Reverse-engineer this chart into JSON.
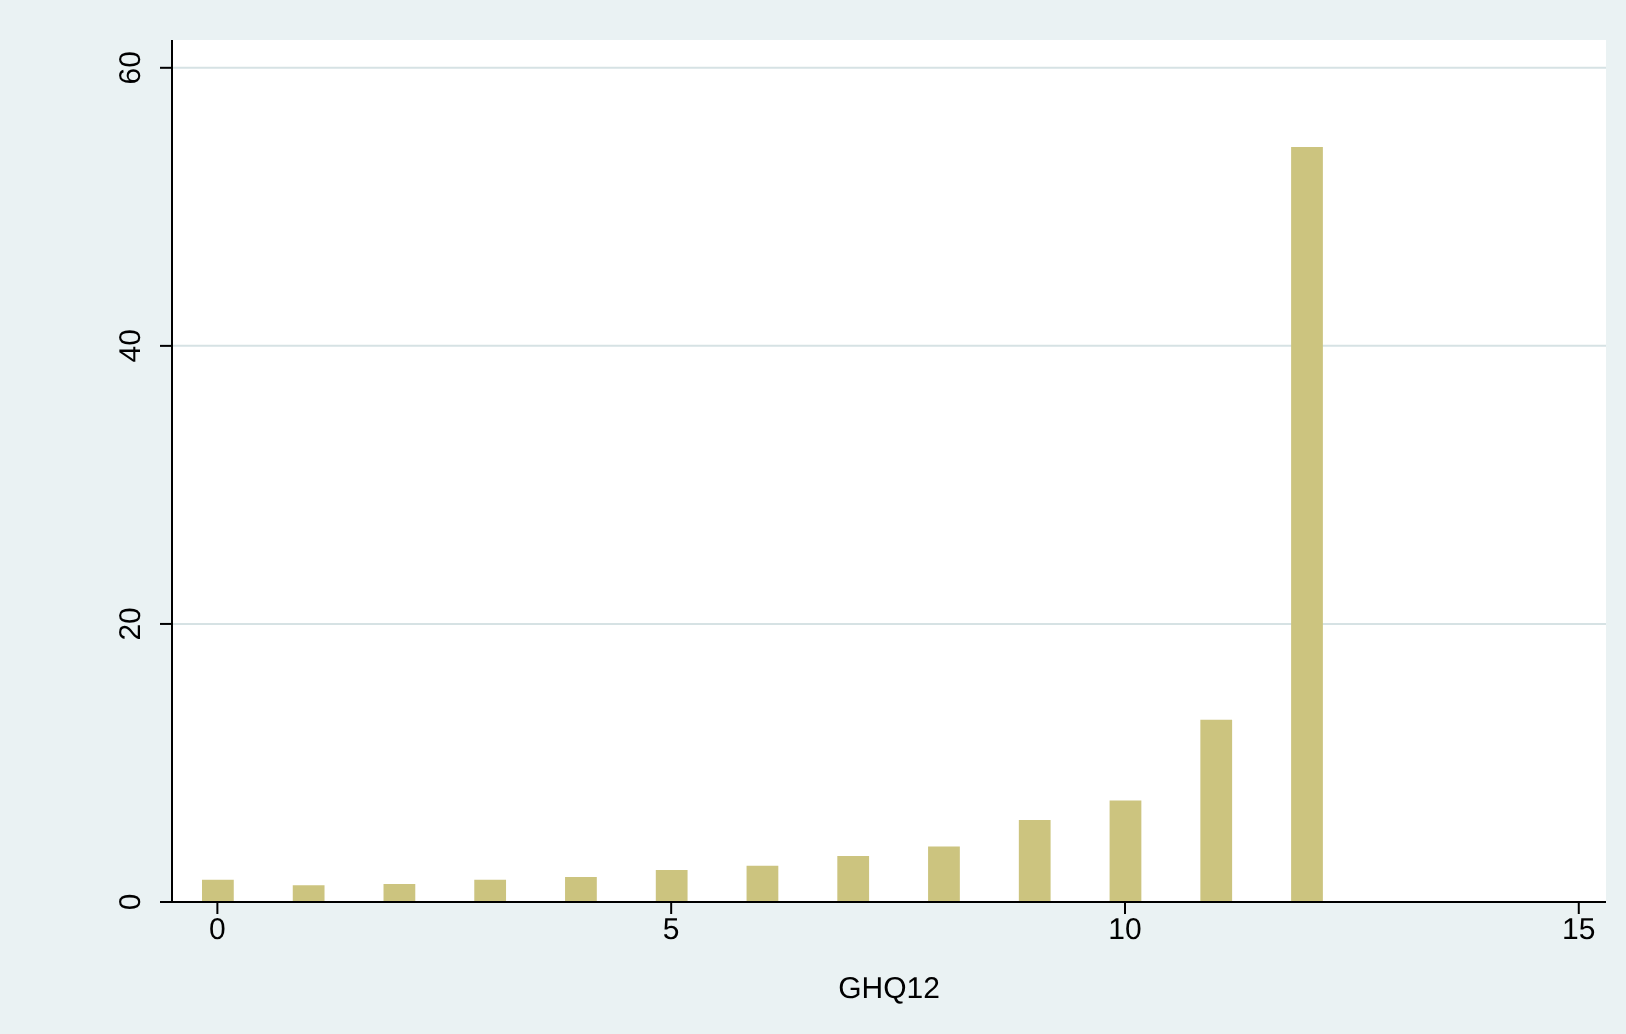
{
  "chart_data": {
    "type": "bar",
    "xlabel": "GHQ12",
    "x": [
      0,
      1,
      2,
      3,
      4,
      5,
      6,
      7,
      8,
      9,
      10,
      11,
      12
    ],
    "values": [
      1.6,
      1.2,
      1.3,
      1.6,
      1.8,
      2.3,
      2.6,
      3.3,
      4.0,
      5.9,
      7.3,
      13.1,
      54.3
    ],
    "color": "#ccc47f",
    "xlim": [
      -0.5,
      15.3
    ],
    "xticks": [
      0,
      5,
      10,
      15
    ],
    "ylim": [
      0,
      62
    ],
    "yticks": [
      0,
      20,
      40,
      60
    ],
    "grid": "y"
  }
}
